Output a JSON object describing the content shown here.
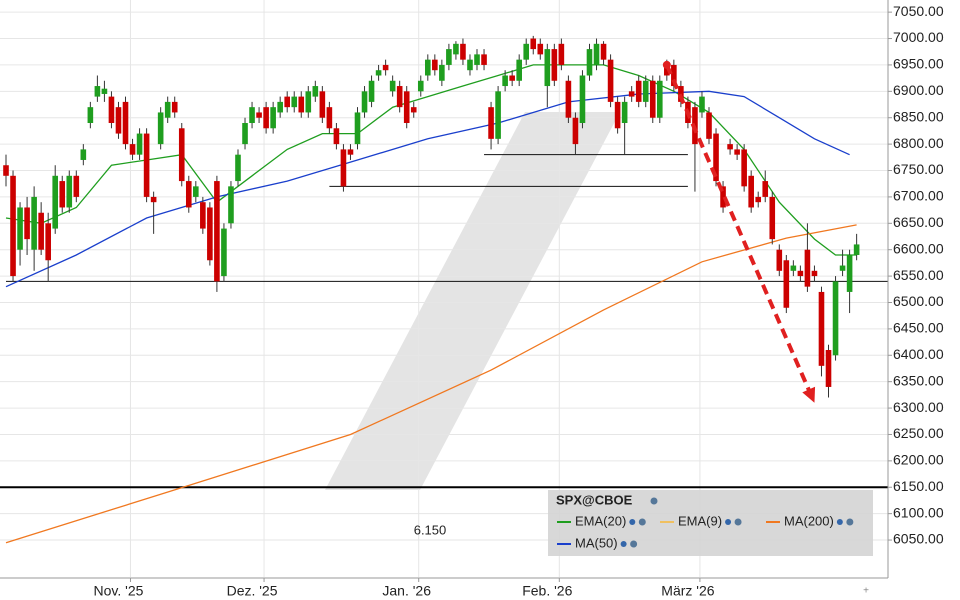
{
  "chart_data": {
    "type": "candlestick",
    "legend_title": "SPX@CBOE",
    "categories": [
      null,
      null,
      null,
      null,
      null,
      null,
      null,
      null,
      null,
      null,
      null,
      null,
      null,
      null,
      null,
      null,
      null,
      null,
      null,
      null,
      null,
      null,
      null,
      null,
      null,
      null,
      null,
      null,
      null,
      null,
      null,
      null,
      null,
      null,
      null,
      null,
      null,
      null,
      null,
      null,
      null,
      null,
      null,
      null,
      null,
      null,
      null,
      null,
      null,
      null,
      null,
      null,
      null,
      null,
      null,
      null,
      null,
      null,
      null,
      null,
      null,
      null,
      null,
      null,
      null,
      null,
      null,
      null,
      null,
      null,
      null,
      null,
      null,
      null,
      null,
      null,
      null,
      null,
      null,
      null,
      null,
      null,
      null,
      null,
      null,
      null,
      null,
      null,
      null,
      null,
      null,
      null,
      null,
      null,
      null,
      null,
      null,
      null,
      null,
      null,
      null,
      null,
      null,
      null,
      null,
      null,
      null,
      null,
      null,
      null,
      null,
      null,
      null,
      null,
      null,
      null,
      null,
      null,
      null,
      null,
      null,
      null
    ],
    "open": [
      6760,
      6740,
      6600,
      6680,
      6600,
      6670,
      6650,
      6640,
      6730,
      6680,
      6740,
      6770,
      6840,
      6890,
      6895,
      6890,
      6870,
      6880,
      6800,
      6780,
      6820,
      6700,
      6800,
      6850,
      6880,
      6830,
      6730,
      6700,
      6690,
      6680,
      6730,
      6550,
      6650,
      6730,
      6800,
      6840,
      6860,
      6870,
      6830,
      6860,
      6890,
      6870,
      6890,
      6860,
      6890,
      6900,
      6870,
      6830,
      6790,
      6790,
      6800,
      6860,
      6880,
      6930,
      6950,
      6900,
      6910,
      6900,
      6870,
      6900,
      6930,
      6960,
      6920,
      6950,
      6970,
      6990,
      6940,
      6950,
      6970,
      6870,
      6810,
      6910,
      6930,
      6920,
      6960,
      7000,
      6990,
      6910,
      6980,
      6990,
      6920,
      6850,
      6840,
      6930,
      6950,
      6990,
      6960,
      6880,
      6840,
      6900,
      6920,
      6880,
      6920,
      6850,
      6950,
      6950,
      6910,
      6880,
      6870,
      6860,
      6860,
      6820,
      6720,
      6800,
      6790,
      6790,
      6740,
      6700,
      6730,
      6700,
      6600,
      6580,
      6560,
      6560,
      6600,
      6560,
      6520,
      6410,
      6400,
      6560,
      6520,
      6590
    ],
    "high": [
      6780,
      6750,
      6690,
      6700,
      6720,
      6690,
      6670,
      6760,
      6740,
      6750,
      6750,
      6800,
      6880,
      6930,
      6920,
      6900,
      6880,
      6890,
      6810,
      6830,
      6830,
      6710,
      6870,
      6890,
      6890,
      6840,
      6740,
      6730,
      6700,
      6690,
      6740,
      6650,
      6730,
      6790,
      6850,
      6880,
      6870,
      6880,
      6880,
      6890,
      6900,
      6900,
      6900,
      6910,
      6920,
      6910,
      6880,
      6840,
      6800,
      6800,
      6870,
      6910,
      6930,
      6950,
      6960,
      6930,
      6920,
      6910,
      6880,
      6930,
      6970,
      6970,
      6960,
      6990,
      6995,
      7000,
      6970,
      6980,
      6980,
      6880,
      6910,
      6940,
      6940,
      6970,
      7000,
      7005,
      7000,
      6990,
      6990,
      7000,
      6930,
      6860,
      6940,
      6990,
      7000,
      6995,
      6970,
      6890,
      6890,
      6910,
      6930,
      6930,
      6930,
      6930,
      6960,
      6960,
      6920,
      6890,
      6880,
      6900,
      6870,
      6830,
      6730,
      6810,
      6800,
      6800,
      6750,
      6710,
      6750,
      6710,
      6610,
      6590,
      6580,
      6570,
      6650,
      6570,
      6530,
      6420,
      6550,
      6600,
      6600,
      6630
    ],
    "low": [
      6720,
      6540,
      6570,
      6590,
      6560,
      6590,
      6540,
      6630,
      6670,
      6670,
      6690,
      6760,
      6830,
      6880,
      6880,
      6830,
      6810,
      6790,
      6770,
      6770,
      6690,
      6630,
      6790,
      6840,
      6850,
      6720,
      6670,
      6690,
      6630,
      6570,
      6520,
      6540,
      6640,
      6720,
      6790,
      6830,
      6840,
      6820,
      6820,
      6850,
      6860,
      6860,
      6850,
      6850,
      6880,
      6840,
      6820,
      6790,
      6710,
      6770,
      6790,
      6850,
      6870,
      6920,
      6930,
      6890,
      6860,
      6830,
      6850,
      6890,
      6920,
      6930,
      6910,
      6940,
      6960,
      6950,
      6930,
      6940,
      6940,
      6790,
      6800,
      6900,
      6910,
      6910,
      6950,
      6970,
      6960,
      6870,
      6910,
      6940,
      6840,
      6780,
      6830,
      6920,
      6940,
      6950,
      6870,
      6820,
      6780,
      6880,
      6870,
      6870,
      6840,
      6840,
      6920,
      6900,
      6870,
      6830,
      6710,
      6850,
      6800,
      6720,
      6670,
      6780,
      6770,
      6710,
      6670,
      6680,
      6690,
      6610,
      6550,
      6480,
      6550,
      6540,
      6520,
      6540,
      6360,
      6320,
      6390,
      6550,
      6480,
      6580
    ],
    "close": [
      6740,
      6550,
      6680,
      6620,
      6700,
      6600,
      6580,
      6740,
      6680,
      6740,
      6700,
      6790,
      6870,
      6910,
      6905,
      6840,
      6820,
      6800,
      6780,
      6820,
      6700,
      6690,
      6860,
      6880,
      6860,
      6730,
      6680,
      6720,
      6640,
      6580,
      6540,
      6640,
      6720,
      6780,
      6840,
      6870,
      6850,
      6830,
      6870,
      6880,
      6870,
      6890,
      6860,
      6900,
      6910,
      6850,
      6830,
      6800,
      6720,
      6780,
      6860,
      6900,
      6920,
      6940,
      6940,
      6920,
      6870,
      6840,
      6860,
      6920,
      6960,
      6940,
      6950,
      6980,
      6990,
      6960,
      6960,
      6970,
      6950,
      6810,
      6900,
      6930,
      6920,
      6960,
      6990,
      6980,
      6970,
      6980,
      6920,
      6950,
      6850,
      6800,
      6930,
      6980,
      6990,
      6960,
      6880,
      6830,
      6880,
      6890,
      6880,
      6920,
      6850,
      6920,
      6930,
      6910,
      6880,
      6840,
      6800,
      6890,
      6810,
      6730,
      6680,
      6790,
      6780,
      6720,
      6680,
      6690,
      6700,
      6620,
      6560,
      6490,
      6570,
      6550,
      6530,
      6550,
      6380,
      6340,
      6540,
      6570,
      6590,
      6610
    ],
    "up_color": "#1f9e1f",
    "down_color": "#cc0000",
    "indicators": [
      {
        "name": "EMA(20)",
        "color": "#1f9e1f",
        "x": [
          0,
          5,
          10,
          15,
          20,
          25,
          30,
          35,
          40,
          45,
          50,
          55,
          60,
          65,
          70,
          75,
          80,
          85,
          90,
          95,
          100,
          105,
          110,
          115,
          118,
          121
        ],
        "values": [
          6660,
          6650,
          6680,
          6760,
          6770,
          6780,
          6690,
          6740,
          6790,
          6820,
          6820,
          6870,
          6890,
          6910,
          6930,
          6950,
          6950,
          6950,
          6930,
          6900,
          6860,
          6790,
          6690,
          6620,
          6590,
          6590
        ]
      },
      {
        "name": "EMA(9)",
        "color": "#f0c060",
        "x": [],
        "values": []
      },
      {
        "name": "MA(200)",
        "color": "#f07820",
        "x": [
          0,
          24,
          49,
          69,
          85,
          99,
          111,
          121
        ],
        "values": [
          6045,
          6145,
          6250,
          6372,
          6486,
          6577,
          6622,
          6647
        ]
      },
      {
        "name": "MA(50)",
        "color": "#1a3fcc",
        "x": [
          0,
          10,
          20,
          30,
          40,
          50,
          60,
          70,
          80,
          90,
          100,
          105,
          110,
          115,
          120
        ],
        "values": [
          6530,
          6590,
          6660,
          6700,
          6730,
          6770,
          6810,
          6840,
          6880,
          6895,
          6900,
          6890,
          6850,
          6810,
          6780
        ]
      }
    ],
    "support_lines": [
      {
        "value": 6540,
        "from": 0
      },
      {
        "value": 6720,
        "from": 46
      },
      {
        "value": 6780,
        "from": 68
      }
    ],
    "key_level": {
      "value": 6150,
      "label": "6.150"
    },
    "arrow": {
      "from": [
        94,
        6950
      ],
      "to": [
        115,
        6310
      ]
    },
    "ylim": [
      5980,
      7073
    ],
    "yticks": [
      {
        "value": 6050,
        "label": "6050.00"
      },
      {
        "value": 6100,
        "label": "6100.00"
      },
      {
        "value": 6150,
        "label": "6150.00"
      },
      {
        "value": 6200,
        "label": "6200.00"
      },
      {
        "value": 6250,
        "label": "6250.00"
      },
      {
        "value": 6300,
        "label": "6300.00"
      },
      {
        "value": 6350,
        "label": "6350.00"
      },
      {
        "value": 6400,
        "label": "6400.00"
      },
      {
        "value": 6450,
        "label": "6450.00"
      },
      {
        "value": 6500,
        "label": "6500.00"
      },
      {
        "value": 6550,
        "label": "6550.00"
      },
      {
        "value": 6600,
        "label": "6600.00"
      },
      {
        "value": 6650,
        "label": "6650.00"
      },
      {
        "value": 6700,
        "label": "6700.00"
      },
      {
        "value": 6750,
        "label": "6750.00"
      },
      {
        "value": 6800,
        "label": "6800.00"
      },
      {
        "value": 6850,
        "label": "6850.00"
      },
      {
        "value": 6900,
        "label": "6900.00"
      },
      {
        "value": 6950,
        "label": "6950.00"
      },
      {
        "value": 7000,
        "label": "7000.00"
      },
      {
        "value": 7050,
        "label": "7050.00"
      }
    ],
    "xticks": [
      {
        "value": 16,
        "label": "Nov. '25"
      },
      {
        "value": 35,
        "label": "Dez. '25"
      },
      {
        "value": 57,
        "label": "Jan. '26"
      },
      {
        "value": 77,
        "label": "Feb. '26"
      },
      {
        "value": 97,
        "label": "März '26"
      }
    ],
    "grid": true
  }
}
